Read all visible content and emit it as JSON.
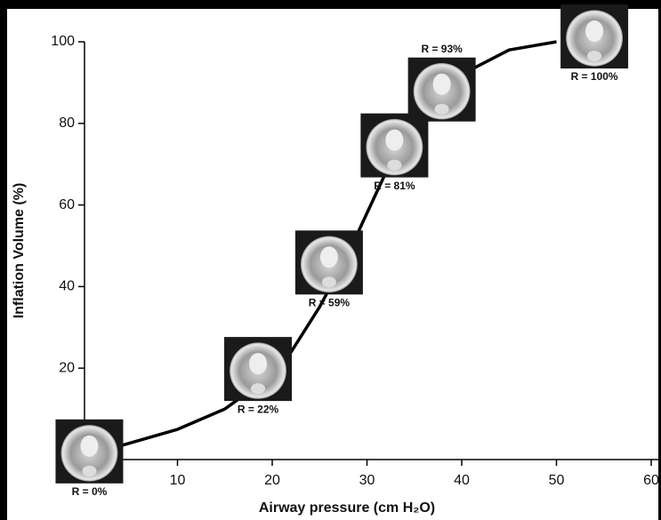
{
  "chart_data": {
    "type": "line",
    "x_label": "Airway pressure (cm H₂O)",
    "y_label": "Inflation Volume (%)",
    "x": [
      4,
      10,
      15,
      18,
      20,
      22,
      25,
      28,
      30,
      32,
      34,
      36,
      38,
      40,
      45,
      50
    ],
    "values": [
      1,
      5,
      10,
      15,
      18,
      24,
      35,
      48,
      58,
      68,
      76,
      83,
      88,
      92,
      98,
      100
    ],
    "color": "#000000",
    "xlim": [
      0,
      60
    ],
    "ylim": [
      -2.4,
      100
    ],
    "xticks": [
      10,
      20,
      30,
      40,
      50,
      60
    ],
    "yticks": [
      20,
      40,
      60,
      80,
      100
    ],
    "annotations": [
      {
        "text": "R = 0%",
        "x": 0.7,
        "y": -0.4
      },
      {
        "text": "R = 22%",
        "x": 18.5,
        "y": 19.8
      },
      {
        "text": "R = 59%",
        "x": 26,
        "y": 45.9
      },
      {
        "text": "R = 81%",
        "x": 32.9,
        "y": 74.6
      },
      {
        "text": "R = 93%",
        "x": 37.9,
        "y": 88.3
      },
      {
        "text": "R = 100%",
        "x": 54,
        "y": 101.3
      }
    ]
  }
}
